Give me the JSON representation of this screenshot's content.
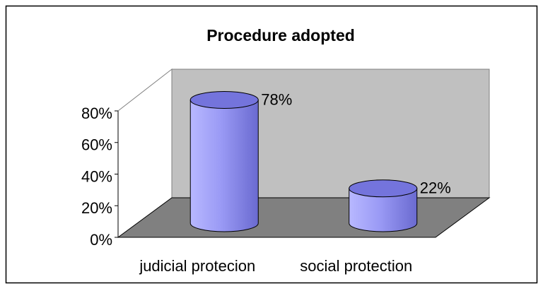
{
  "chart_data": {
    "type": "bar3d",
    "title": "Procedure adopted",
    "categories": [
      "judicial protecion",
      "social protection"
    ],
    "values": [
      78,
      22
    ],
    "value_labels": [
      "78%",
      "22%"
    ],
    "color": "#9999ff",
    "ylim": [
      0,
      80
    ],
    "yticks": [
      {
        "value": 0,
        "label": "0%"
      },
      {
        "value": 20,
        "label": "20%"
      },
      {
        "value": 40,
        "label": "40%"
      },
      {
        "value": 60,
        "label": "60%"
      },
      {
        "value": 80,
        "label": "80%"
      }
    ]
  }
}
